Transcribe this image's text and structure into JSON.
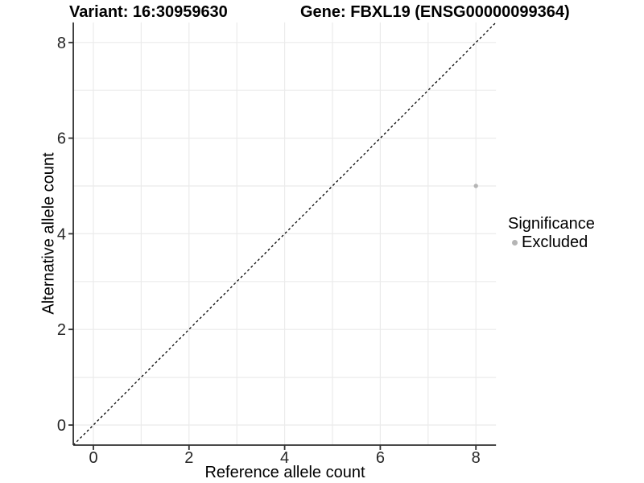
{
  "titles": {
    "variant": "Variant: 16:30959630",
    "gene": "Gene: FBXL19 (ENSG00000099364)"
  },
  "chart_data": {
    "type": "scatter",
    "xlabel": "Reference allele count",
    "ylabel": "Alternative allele count",
    "xlim": [
      -0.42,
      8.42
    ],
    "ylim": [
      -0.42,
      8.42
    ],
    "x_ticks": [
      0,
      2,
      4,
      6,
      8
    ],
    "y_ticks": [
      0,
      2,
      4,
      6,
      8
    ],
    "grid": {
      "on": true,
      "every": 1,
      "from": 0,
      "to": 8
    },
    "identity_line": {
      "type": "dashed",
      "x1": -0.42,
      "y1": -0.42,
      "x2": 8.42,
      "y2": 8.42
    },
    "points": [
      {
        "x": 8,
        "y": 5,
        "series": "Excluded"
      }
    ],
    "legend": {
      "position": "right",
      "title": "Significance",
      "entries": [
        {
          "label": "Excluded",
          "color": "#b5b5b5"
        }
      ]
    }
  },
  "colors": {
    "background": "#ffffff",
    "grid": "#ebebeb",
    "axis": "#333333",
    "tick_label": "#262626",
    "identity_line": "#000000",
    "point": "#b5b5b5"
  }
}
